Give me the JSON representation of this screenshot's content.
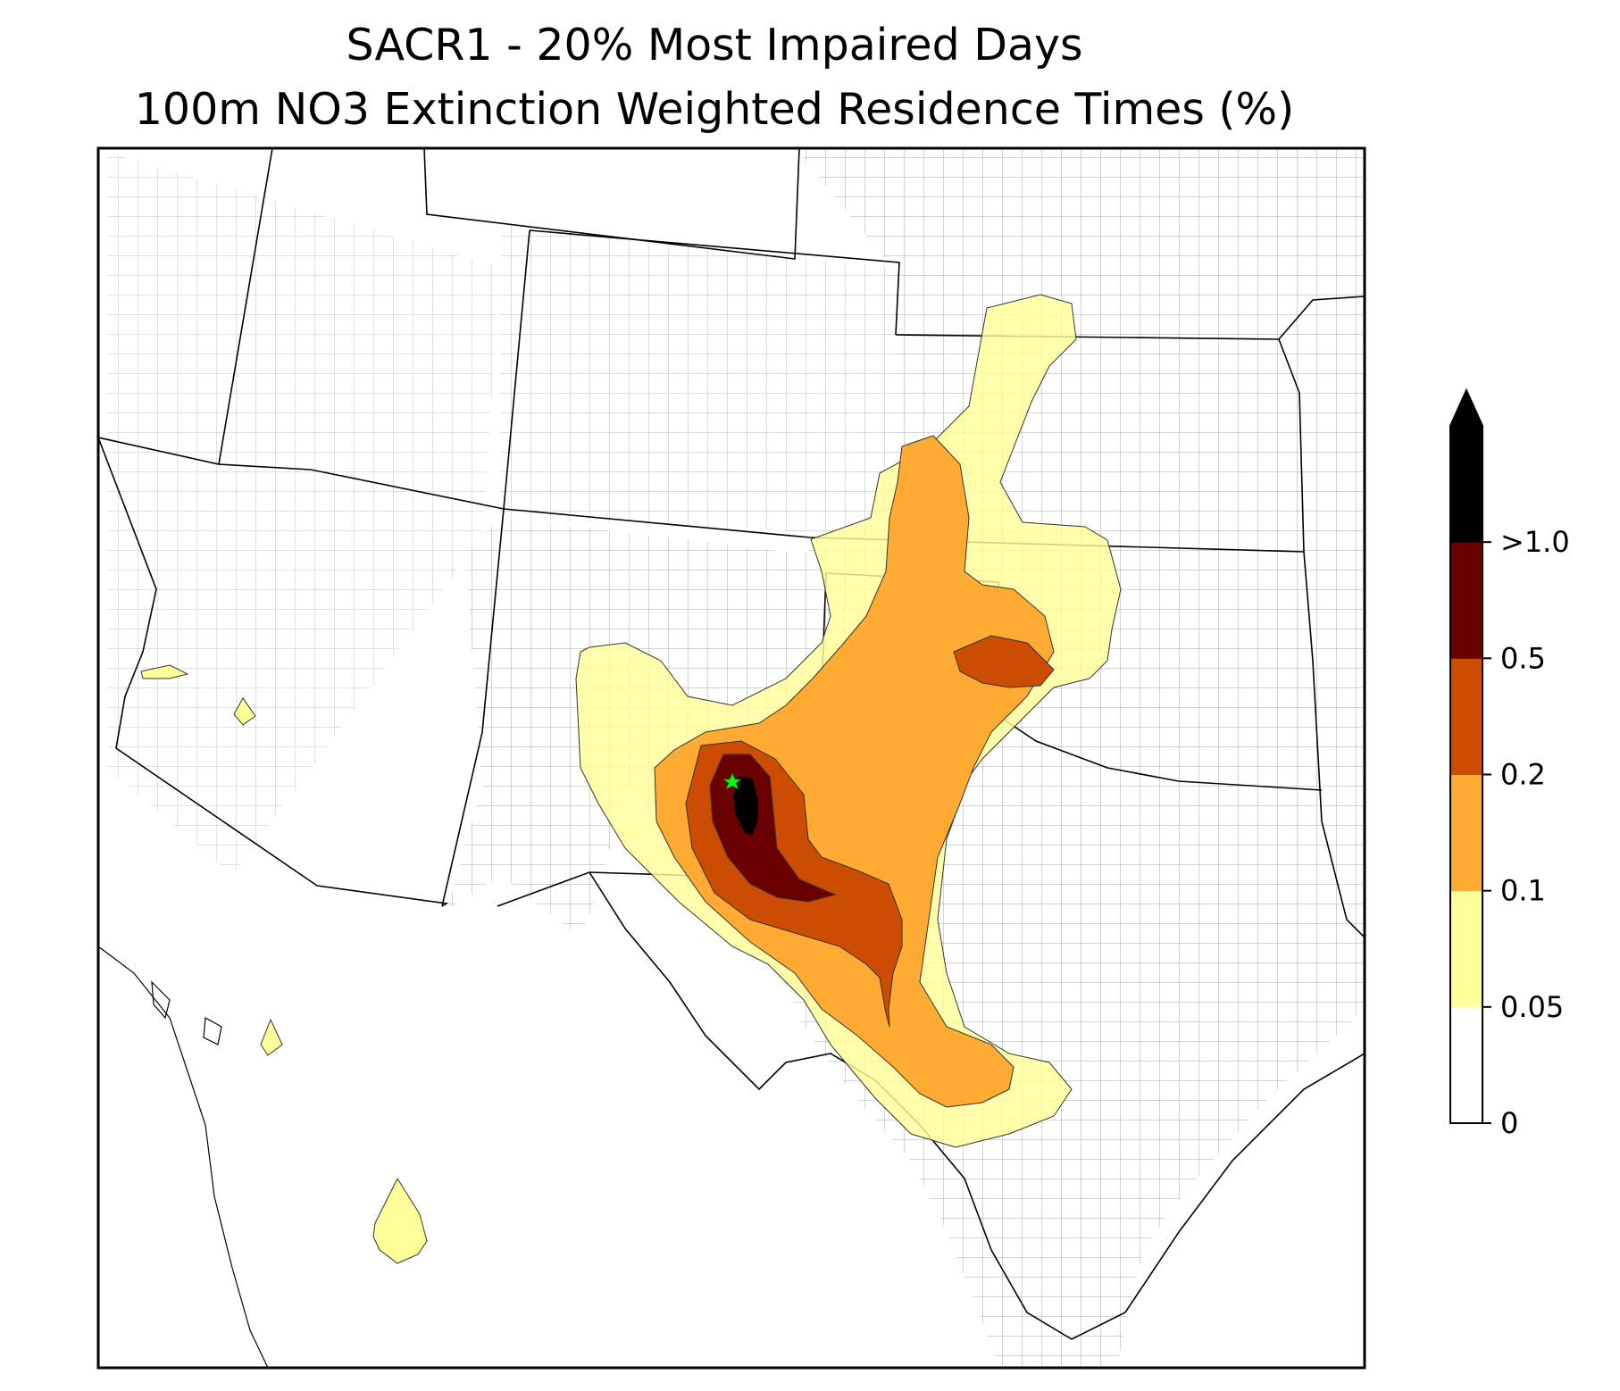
{
  "title_line1": "SACR1 - 20% Most Impaired Days",
  "title_line2": "100m NO3 Extinction Weighted Residence Times (%)",
  "colorbar": {
    "extend": "max",
    "levels": [
      {
        "label": "0",
        "color": "#ffffff"
      },
      {
        "label": "0.05",
        "color": "#ffff99"
      },
      {
        "label": "0.1",
        "color": "#ffaa33"
      },
      {
        "label": "0.2",
        "color": "#cc4c02"
      },
      {
        "label": "0.5",
        "color": "#6b0000"
      },
      {
        "label": ">1.0",
        "color": "#000000"
      }
    ]
  },
  "map": {
    "site_marker_color": "#00ff00",
    "state_border_color": "#000000",
    "county_border_color": "#a0a0a0",
    "contour_colors": {
      "c005": "#ffff99",
      "c01": "#ffaa33",
      "c02": "#cc4c02",
      "c05": "#6b0000",
      "c10": "#000000"
    }
  }
}
